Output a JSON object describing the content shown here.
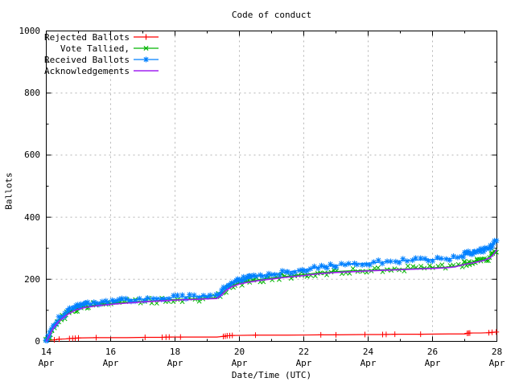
{
  "title": "Code of conduct",
  "axes": {
    "x_label": "Date/Time (UTC)",
    "y_label": "Ballots",
    "y_ticks": [
      "0",
      "200",
      "400",
      "600",
      "800",
      "1000"
    ],
    "x_ticks": [
      {
        "day": "14",
        "month": "Apr"
      },
      {
        "day": "16",
        "month": "Apr"
      },
      {
        "day": "18",
        "month": "Apr"
      },
      {
        "day": "20",
        "month": "Apr"
      },
      {
        "day": "22",
        "month": "Apr"
      },
      {
        "day": "24",
        "month": "Apr"
      },
      {
        "day": "26",
        "month": "Apr"
      },
      {
        "day": "28",
        "month": "Apr"
      }
    ]
  },
  "colors": {
    "rejected": "#ff0000",
    "tallied": "#00b400",
    "received": "#0080ff",
    "acknowledgements": "#a020f0",
    "grid": "#b4b4b4",
    "border": "#000000"
  },
  "chart_data": {
    "type": "line",
    "title": "Code of conduct",
    "xlabel": "Date/Time (UTC)",
    "ylabel": "Ballots",
    "ylim": [
      0,
      1000
    ],
    "xlim_days": [
      0,
      14
    ],
    "x_start_date": "14 Apr",
    "x_end_date": "28 Apr",
    "grid": true,
    "legend_position": "top-left-inside",
    "y_major_step": 200,
    "y_minor_step": 100,
    "x_major_step_days": 2,
    "x_minor_step_days": 1,
    "series": [
      {
        "name": "Rejected Ballots",
        "color": "#ff0000",
        "marker": "plus",
        "marker_mode": "events",
        "points": [
          [
            0,
            0
          ],
          [
            0.1,
            3
          ],
          [
            0.25,
            5
          ],
          [
            0.4,
            7
          ],
          [
            0.6,
            8
          ],
          [
            0.72,
            9
          ],
          [
            0.9,
            10
          ],
          [
            1.0,
            11
          ],
          [
            1.55,
            12
          ],
          [
            2.5,
            12
          ],
          [
            3.07,
            13
          ],
          [
            3.6,
            13
          ],
          [
            3.82,
            14
          ],
          [
            4.17,
            14
          ],
          [
            5.3,
            14
          ],
          [
            5.5,
            16
          ],
          [
            5.62,
            18
          ],
          [
            5.78,
            19
          ],
          [
            6.5,
            20
          ],
          [
            7.5,
            20
          ],
          [
            8.53,
            21
          ],
          [
            9.0,
            21
          ],
          [
            9.9,
            22
          ],
          [
            10.45,
            22
          ],
          [
            10.83,
            23
          ],
          [
            11.63,
            23
          ],
          [
            12.5,
            24
          ],
          [
            13.02,
            24
          ],
          [
            13.08,
            26
          ],
          [
            13.16,
            27
          ],
          [
            13.5,
            27
          ],
          [
            13.75,
            28
          ],
          [
            13.85,
            29
          ],
          [
            13.98,
            30
          ],
          [
            14,
            31
          ]
        ],
        "marker_days": [
          0.25,
          0.4,
          0.72,
          0.82,
          0.9,
          1.0,
          1.55,
          3.07,
          3.6,
          3.72,
          3.82,
          4.17,
          5.5,
          5.56,
          5.62,
          5.7,
          5.78,
          6.5,
          8.53,
          9.0,
          9.9,
          10.45,
          10.56,
          10.83,
          11.63,
          13.08,
          13.12,
          13.16,
          13.75,
          13.85,
          13.98
        ]
      },
      {
        "name": "Vote Tallied,",
        "color": "#00b400",
        "marker": "cross",
        "marker_mode": "dense",
        "points": [
          [
            0,
            0
          ],
          [
            0.05,
            10
          ],
          [
            0.1,
            21
          ],
          [
            0.15,
            33
          ],
          [
            0.2,
            43
          ],
          [
            0.3,
            56
          ],
          [
            0.4,
            68
          ],
          [
            0.5,
            77
          ],
          [
            0.6,
            85
          ],
          [
            0.7,
            92
          ],
          [
            0.8,
            98
          ],
          [
            0.9,
            103
          ],
          [
            1.0,
            107
          ],
          [
            1.2,
            112
          ],
          [
            1.4,
            115
          ],
          [
            1.6,
            118
          ],
          [
            1.8,
            120
          ],
          [
            2.0,
            122
          ],
          [
            2.3,
            125
          ],
          [
            2.6,
            127
          ],
          [
            3.0,
            129
          ],
          [
            3.5,
            132
          ],
          [
            4.0,
            135
          ],
          [
            4.5,
            137
          ],
          [
            5.0,
            139
          ],
          [
            5.3,
            140
          ],
          [
            5.45,
            152
          ],
          [
            5.6,
            168
          ],
          [
            5.75,
            178
          ],
          [
            5.9,
            184
          ],
          [
            6.0,
            188
          ],
          [
            6.3,
            194
          ],
          [
            6.6,
            199
          ],
          [
            7.0,
            204
          ],
          [
            7.4,
            209
          ],
          [
            7.8,
            213
          ],
          [
            8.0,
            215
          ],
          [
            8.3,
            219
          ],
          [
            8.6,
            222
          ],
          [
            9.0,
            225
          ],
          [
            9.4,
            227
          ],
          [
            9.8,
            228
          ],
          [
            10.0,
            229
          ],
          [
            10.5,
            231
          ],
          [
            11.0,
            233
          ],
          [
            11.5,
            235
          ],
          [
            12.0,
            237
          ],
          [
            12.4,
            239
          ],
          [
            12.7,
            242
          ],
          [
            13.0,
            250
          ],
          [
            13.2,
            254
          ],
          [
            13.4,
            258
          ],
          [
            13.6,
            263
          ],
          [
            13.8,
            272
          ],
          [
            13.9,
            283
          ],
          [
            14.0,
            299
          ]
        ]
      },
      {
        "name": "Received Ballots",
        "color": "#0080ff",
        "marker": "star",
        "marker_mode": "dense",
        "points": [
          [
            0,
            0
          ],
          [
            0.05,
            12
          ],
          [
            0.1,
            25
          ],
          [
            0.15,
            38
          ],
          [
            0.2,
            48
          ],
          [
            0.3,
            62
          ],
          [
            0.4,
            74
          ],
          [
            0.5,
            83
          ],
          [
            0.6,
            91
          ],
          [
            0.7,
            98
          ],
          [
            0.8,
            104
          ],
          [
            0.9,
            109
          ],
          [
            1.0,
            113
          ],
          [
            1.2,
            119
          ],
          [
            1.4,
            122
          ],
          [
            1.6,
            125
          ],
          [
            1.8,
            127
          ],
          [
            2.0,
            129
          ],
          [
            2.3,
            132
          ],
          [
            2.6,
            134
          ],
          [
            3.0,
            136
          ],
          [
            3.5,
            139
          ],
          [
            4.0,
            142
          ],
          [
            4.5,
            144
          ],
          [
            5.0,
            146
          ],
          [
            5.3,
            147
          ],
          [
            5.45,
            160
          ],
          [
            5.6,
            178
          ],
          [
            5.75,
            188
          ],
          [
            5.9,
            194
          ],
          [
            6.0,
            198
          ],
          [
            6.3,
            205
          ],
          [
            6.6,
            211
          ],
          [
            7.0,
            216
          ],
          [
            7.4,
            222
          ],
          [
            7.8,
            228
          ],
          [
            8.0,
            231
          ],
          [
            8.3,
            236
          ],
          [
            8.6,
            241
          ],
          [
            9.0,
            245
          ],
          [
            9.4,
            248
          ],
          [
            9.8,
            251
          ],
          [
            10.0,
            252
          ],
          [
            10.5,
            256
          ],
          [
            11.0,
            259
          ],
          [
            11.5,
            262
          ],
          [
            12.0,
            264
          ],
          [
            12.4,
            266
          ],
          [
            12.7,
            268
          ],
          [
            12.9,
            272
          ],
          [
            13.0,
            280
          ],
          [
            13.1,
            285
          ],
          [
            13.3,
            289
          ],
          [
            13.5,
            293
          ],
          [
            13.7,
            298
          ],
          [
            13.8,
            305
          ],
          [
            13.9,
            315
          ],
          [
            14.0,
            330
          ]
        ]
      },
      {
        "name": "Acknowledgements",
        "color": "#a020f0",
        "marker": "none",
        "marker_mode": "none",
        "points": [
          [
            0,
            0
          ],
          [
            0.05,
            9
          ],
          [
            0.1,
            19
          ],
          [
            0.15,
            30
          ],
          [
            0.2,
            40
          ],
          [
            0.3,
            53
          ],
          [
            0.4,
            65
          ],
          [
            0.5,
            74
          ],
          [
            0.6,
            82
          ],
          [
            0.7,
            89
          ],
          [
            0.8,
            95
          ],
          [
            0.9,
            100
          ],
          [
            1.0,
            104
          ],
          [
            1.2,
            109
          ],
          [
            1.4,
            112
          ],
          [
            1.6,
            115
          ],
          [
            1.8,
            117
          ],
          [
            2.0,
            119
          ],
          [
            2.3,
            122
          ],
          [
            2.6,
            124
          ],
          [
            3.0,
            127
          ],
          [
            3.5,
            130
          ],
          [
            4.0,
            133
          ],
          [
            4.5,
            135
          ],
          [
            5.0,
            137
          ],
          [
            5.3,
            138
          ],
          [
            5.45,
            150
          ],
          [
            5.6,
            165
          ],
          [
            5.75,
            175
          ],
          [
            5.9,
            181
          ],
          [
            6.0,
            185
          ],
          [
            6.3,
            191
          ],
          [
            6.6,
            196
          ],
          [
            7.0,
            201
          ],
          [
            7.4,
            206
          ],
          [
            7.8,
            210
          ],
          [
            8.0,
            212
          ],
          [
            8.3,
            216
          ],
          [
            8.6,
            219
          ],
          [
            9.0,
            222
          ],
          [
            9.4,
            224
          ],
          [
            9.8,
            226
          ],
          [
            10.0,
            227
          ],
          [
            10.5,
            229
          ],
          [
            11.0,
            231
          ],
          [
            11.5,
            233
          ],
          [
            12.0,
            235
          ],
          [
            12.4,
            237
          ],
          [
            12.7,
            240
          ],
          [
            13.0,
            248
          ],
          [
            13.2,
            252
          ],
          [
            13.4,
            256
          ],
          [
            13.6,
            261
          ],
          [
            13.8,
            270
          ],
          [
            13.9,
            281
          ],
          [
            14.0,
            296
          ]
        ]
      }
    ]
  }
}
